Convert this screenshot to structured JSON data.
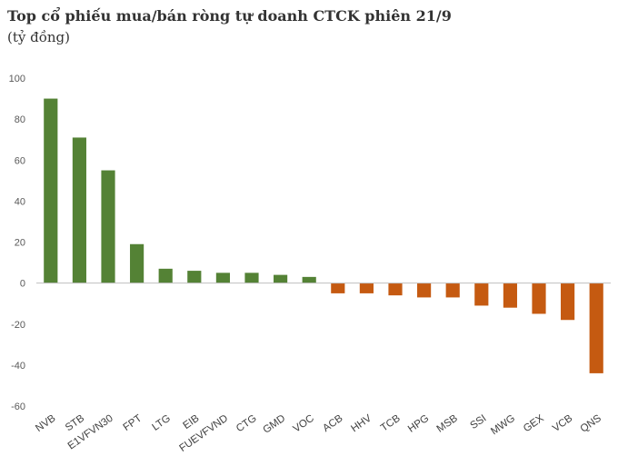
{
  "chart_data": {
    "type": "bar",
    "title": "Top cổ phiếu mua/bán ròng tự doanh CTCK phiên 21/9",
    "subtitle": "(tỷ đồng)",
    "categories": [
      "NVB",
      "STB",
      "E1VFVN30",
      "FPT",
      "LTG",
      "EIB",
      "FUEVFVND",
      "CTG",
      "GMD",
      "VOC",
      "ACB",
      "HHV",
      "TCB",
      "HPG",
      "MSB",
      "SSI",
      "MWG",
      "GEX",
      "VCB",
      "QNS"
    ],
    "values": [
      90,
      71,
      55,
      19,
      7,
      6,
      5,
      5,
      4,
      3,
      -5,
      -5,
      -6,
      -7,
      -7,
      -11,
      -12,
      -15,
      -18,
      -44
    ],
    "ylim": [
      -60,
      100
    ],
    "yticks": [
      100,
      80,
      60,
      40,
      20,
      0,
      -20,
      -40,
      -60
    ],
    "grid": false,
    "legend": "none",
    "colors": {
      "positive": "#548235",
      "negative": "#C55A11",
      "axis": "#BFBFBF"
    }
  }
}
